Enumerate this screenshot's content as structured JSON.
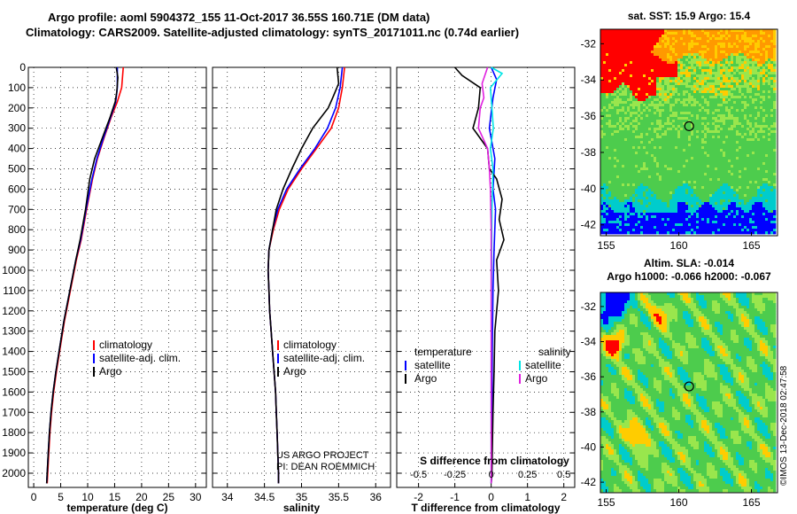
{
  "header": {
    "title_line1": "Argo profile: aoml 5904372_155 11-Oct-2017 36.55S 160.71E (DM data)",
    "title_line2": "Climatology: CARS2009. Satellite-adjusted climatology: synTS_20171011.nc (0.74d earlier)"
  },
  "stamp": "©IMOS 13-Dec-2018 02:47:58",
  "credits": [
    "US ARGO PROJECT",
    "PI: DEAN ROEMMICH"
  ],
  "colors": {
    "climatology": "#ff0000",
    "satellite": "#0000ff",
    "argo": "#000000",
    "sal_satellite": "#00e5e5",
    "sal_argo": "#e020e0"
  },
  "chart_data": [
    {
      "type": "line",
      "xlabel": "temperature (deg C)",
      "xlim": [
        -1,
        32
      ],
      "xticks": [
        0,
        5,
        10,
        15,
        20,
        25,
        30
      ],
      "ylim": [
        2070,
        0
      ],
      "yticks": [
        0,
        100,
        200,
        300,
        400,
        500,
        600,
        700,
        800,
        900,
        1000,
        1100,
        1200,
        1300,
        1400,
        1500,
        1600,
        1700,
        1800,
        1900,
        2000
      ],
      "legend": {
        "position": "lower-right",
        "entries": [
          "climatology",
          "satellite-adj. clim.",
          "Argo"
        ]
      },
      "series": [
        {
          "name": "climatology",
          "color": "#ff0000",
          "points": [
            [
              16.6,
              0
            ],
            [
              16.3,
              100
            ],
            [
              15.5,
              170
            ],
            [
              14.3,
              250
            ],
            [
              13,
              350
            ],
            [
              11.8,
              450
            ],
            [
              10.9,
              550
            ],
            [
              9.8,
              700
            ],
            [
              8.8,
              850
            ],
            [
              7.9,
              950
            ],
            [
              6.8,
              1100
            ],
            [
              5.7,
              1250
            ],
            [
              4.8,
              1400
            ],
            [
              4.2,
              1500
            ],
            [
              3.7,
              1600
            ],
            [
              3.3,
              1700
            ],
            [
              3,
              1800
            ],
            [
              2.8,
              1900
            ],
            [
              2.6,
              2000
            ],
            [
              2.5,
              2050
            ]
          ]
        },
        {
          "name": "satellite-adj. clim.",
          "color": "#0000ff",
          "points": [
            [
              15.5,
              0
            ],
            [
              15.5,
              100
            ],
            [
              15.2,
              170
            ],
            [
              14.2,
              250
            ],
            [
              12.9,
              350
            ],
            [
              11.7,
              450
            ],
            [
              10.8,
              550
            ],
            [
              9.7,
              700
            ],
            [
              8.7,
              850
            ],
            [
              7.8,
              950
            ],
            [
              6.7,
              1100
            ],
            [
              5.6,
              1250
            ],
            [
              4.7,
              1400
            ],
            [
              4.1,
              1500
            ],
            [
              3.6,
              1600
            ],
            [
              3.2,
              1700
            ],
            [
              2.9,
              1800
            ],
            [
              2.7,
              1900
            ],
            [
              2.5,
              2000
            ],
            [
              2.4,
              2050
            ]
          ]
        },
        {
          "name": "Argo",
          "color": "#000000",
          "points": [
            [
              15.3,
              0
            ],
            [
              15.6,
              50
            ],
            [
              15.4,
              120
            ],
            [
              15.1,
              170
            ],
            [
              14.1,
              250
            ],
            [
              12.7,
              350
            ],
            [
              11.3,
              450
            ],
            [
              10.4,
              550
            ],
            [
              9.6,
              700
            ],
            [
              8.6,
              850
            ],
            [
              7.8,
              950
            ],
            [
              6.7,
              1100
            ],
            [
              5.6,
              1250
            ],
            [
              4.7,
              1400
            ],
            [
              4.1,
              1500
            ],
            [
              3.6,
              1600
            ],
            [
              3.2,
              1700
            ],
            [
              2.9,
              1800
            ],
            [
              2.7,
              1900
            ],
            [
              2.5,
              2000
            ],
            [
              2.4,
              2050
            ]
          ]
        }
      ]
    },
    {
      "type": "line",
      "xlabel": "salinity",
      "xlim": [
        33.8,
        36.2
      ],
      "xticks": [
        34,
        34.5,
        35,
        35.5,
        36
      ],
      "ylim": [
        2070,
        0
      ],
      "legend": {
        "position": "lower-right",
        "entries": [
          "climatology",
          "satellite-adj. clim.",
          "Argo"
        ]
      },
      "series": [
        {
          "name": "climatology",
          "color": "#ff0000",
          "points": [
            [
              35.58,
              0
            ],
            [
              35.55,
              100
            ],
            [
              35.5,
              200
            ],
            [
              35.4,
              300
            ],
            [
              35.2,
              400
            ],
            [
              35,
              500
            ],
            [
              34.82,
              600
            ],
            [
              34.7,
              700
            ],
            [
              34.62,
              800
            ],
            [
              34.56,
              900
            ],
            [
              34.55,
              1000
            ],
            [
              34.56,
              1100
            ],
            [
              34.57,
              1200
            ],
            [
              34.59,
              1300
            ],
            [
              34.61,
              1400
            ],
            [
              34.63,
              1500
            ],
            [
              34.65,
              1600
            ],
            [
              34.66,
              1700
            ],
            [
              34.67,
              1800
            ],
            [
              34.68,
              1900
            ],
            [
              34.69,
              2000
            ],
            [
              34.69,
              2050
            ]
          ]
        },
        {
          "name": "satellite-adj. clim.",
          "color": "#0000ff",
          "points": [
            [
              35.55,
              0
            ],
            [
              35.52,
              100
            ],
            [
              35.46,
              200
            ],
            [
              35.35,
              300
            ],
            [
              35.18,
              400
            ],
            [
              34.98,
              500
            ],
            [
              34.8,
              600
            ],
            [
              34.68,
              700
            ],
            [
              34.61,
              800
            ],
            [
              34.56,
              900
            ],
            [
              34.55,
              1000
            ],
            [
              34.56,
              1100
            ],
            [
              34.57,
              1200
            ],
            [
              34.59,
              1300
            ],
            [
              34.61,
              1400
            ],
            [
              34.63,
              1500
            ],
            [
              34.65,
              1600
            ],
            [
              34.66,
              1700
            ],
            [
              34.67,
              1800
            ],
            [
              34.68,
              1900
            ],
            [
              34.69,
              2000
            ],
            [
              34.69,
              2050
            ]
          ]
        },
        {
          "name": "Argo",
          "color": "#000000",
          "points": [
            [
              35.48,
              0
            ],
            [
              35.5,
              80
            ],
            [
              35.42,
              150
            ],
            [
              35.36,
              200
            ],
            [
              35.15,
              300
            ],
            [
              35,
              400
            ],
            [
              34.87,
              500
            ],
            [
              34.75,
              600
            ],
            [
              34.66,
              700
            ],
            [
              34.61,
              800
            ],
            [
              34.56,
              900
            ],
            [
              34.55,
              1000
            ],
            [
              34.56,
              1100
            ],
            [
              34.57,
              1200
            ],
            [
              34.59,
              1300
            ],
            [
              34.61,
              1400
            ],
            [
              34.63,
              1500
            ],
            [
              34.65,
              1600
            ],
            [
              34.66,
              1700
            ],
            [
              34.67,
              1800
            ],
            [
              34.68,
              1900
            ],
            [
              34.69,
              2000
            ],
            [
              34.69,
              2050
            ]
          ]
        }
      ]
    },
    {
      "type": "line",
      "xlabel": "T difference from climatology",
      "xlabel_top": "S difference from climatology",
      "xlim": [
        -2.6,
        2.3
      ],
      "xticks": [
        -2,
        -1,
        0,
        1,
        2
      ],
      "xticks_s": [
        "-0.5",
        "-0.25",
        "0",
        "0.25",
        "0.5"
      ],
      "ylim": [
        2070,
        0
      ],
      "legend": {
        "position": "lower-center",
        "temperature_heading": "temperature",
        "salinity_heading": "salinity",
        "temperature_entries": [
          "satellite",
          "Argo"
        ],
        "salinity_entries": [
          "satellite",
          "Argo"
        ]
      },
      "series": [
        {
          "name": "satellite",
          "group": "temperature",
          "color": "#0000ff",
          "points": [
            [
              0,
              0
            ],
            [
              0.15,
              60
            ],
            [
              0.05,
              150
            ],
            [
              -0.05,
              300
            ],
            [
              0.1,
              450
            ],
            [
              0.05,
              600
            ],
            [
              0.12,
              700
            ],
            [
              0.08,
              900
            ],
            [
              0.05,
              1100
            ],
            [
              0.03,
              1400
            ],
            [
              0.02,
              1700
            ],
            [
              0.01,
              2000
            ],
            [
              0,
              2050
            ]
          ]
        },
        {
          "name": "Argo",
          "group": "temperature",
          "color": "#000000",
          "points": [
            [
              -1,
              0
            ],
            [
              -0.8,
              40
            ],
            [
              -0.3,
              100
            ],
            [
              -0.35,
              200
            ],
            [
              -0.5,
              300
            ],
            [
              -0.1,
              400
            ],
            [
              -0.05,
              500
            ],
            [
              0.15,
              550
            ],
            [
              0.3,
              650
            ],
            [
              0.22,
              750
            ],
            [
              0.35,
              850
            ],
            [
              0.15,
              950
            ],
            [
              0.2,
              1100
            ],
            [
              0.1,
              1300
            ],
            [
              0.08,
              1500
            ],
            [
              0.05,
              1700
            ],
            [
              0.03,
              1900
            ],
            [
              0.02,
              2000
            ],
            [
              0,
              2050
            ]
          ]
        },
        {
          "name": "satellite",
          "group": "salinity",
          "color": "#00e5e5",
          "points": [
            [
              0,
              0
            ],
            [
              0.3,
              30
            ],
            [
              -0.02,
              100
            ],
            [
              0.02,
              200
            ],
            [
              0.06,
              300
            ],
            [
              -0.02,
              400
            ],
            [
              0.05,
              500
            ],
            [
              0.02,
              700
            ],
            [
              0.01,
              1000
            ],
            [
              0,
              1500
            ],
            [
              0,
              2050
            ]
          ]
        },
        {
          "name": "Argo",
          "group": "salinity",
          "color": "#e020e0",
          "points": [
            [
              -0.1,
              0
            ],
            [
              -0.25,
              80
            ],
            [
              -0.2,
              150
            ],
            [
              -0.3,
              200
            ],
            [
              -0.35,
              300
            ],
            [
              -0.1,
              400
            ],
            [
              -0.05,
              500
            ],
            [
              -0.02,
              600
            ],
            [
              0,
              800
            ],
            [
              0,
              1000
            ],
            [
              0,
              2050
            ]
          ]
        }
      ]
    },
    {
      "type": "heatmap",
      "title": "sat. SST: 15.9 Argo: 15.4",
      "xlim": [
        154.6,
        166.8
      ],
      "ylim": [
        -42.6,
        -31.2
      ],
      "xticks": [
        155,
        160,
        165
      ],
      "yticks": [
        -32,
        -34,
        -36,
        -38,
        -40,
        -42
      ],
      "marker": {
        "lon": 160.71,
        "lat": -36.55
      },
      "colors": [
        "#ff9900",
        "#ff0000",
        "#ffcc00",
        "#99e64d",
        "#4dcc4d",
        "#00cccc",
        "#0000ff"
      ]
    },
    {
      "type": "heatmap",
      "title_line1": "Altim. SLA: -0.014",
      "title_line2": "Argo h1000: -0.066 h2000: -0.067",
      "xlim": [
        154.6,
        166.8
      ],
      "ylim": [
        -42.6,
        -31.2
      ],
      "xticks": [
        155,
        160,
        165
      ],
      "yticks": [
        -32,
        -34,
        -36,
        -38,
        -40,
        -42
      ],
      "marker": {
        "lon": 160.71,
        "lat": -36.55
      },
      "colors": [
        "#0000ff",
        "#00cccc",
        "#4dcc4d",
        "#99e64d",
        "#ffcc00",
        "#ff0000"
      ]
    }
  ]
}
